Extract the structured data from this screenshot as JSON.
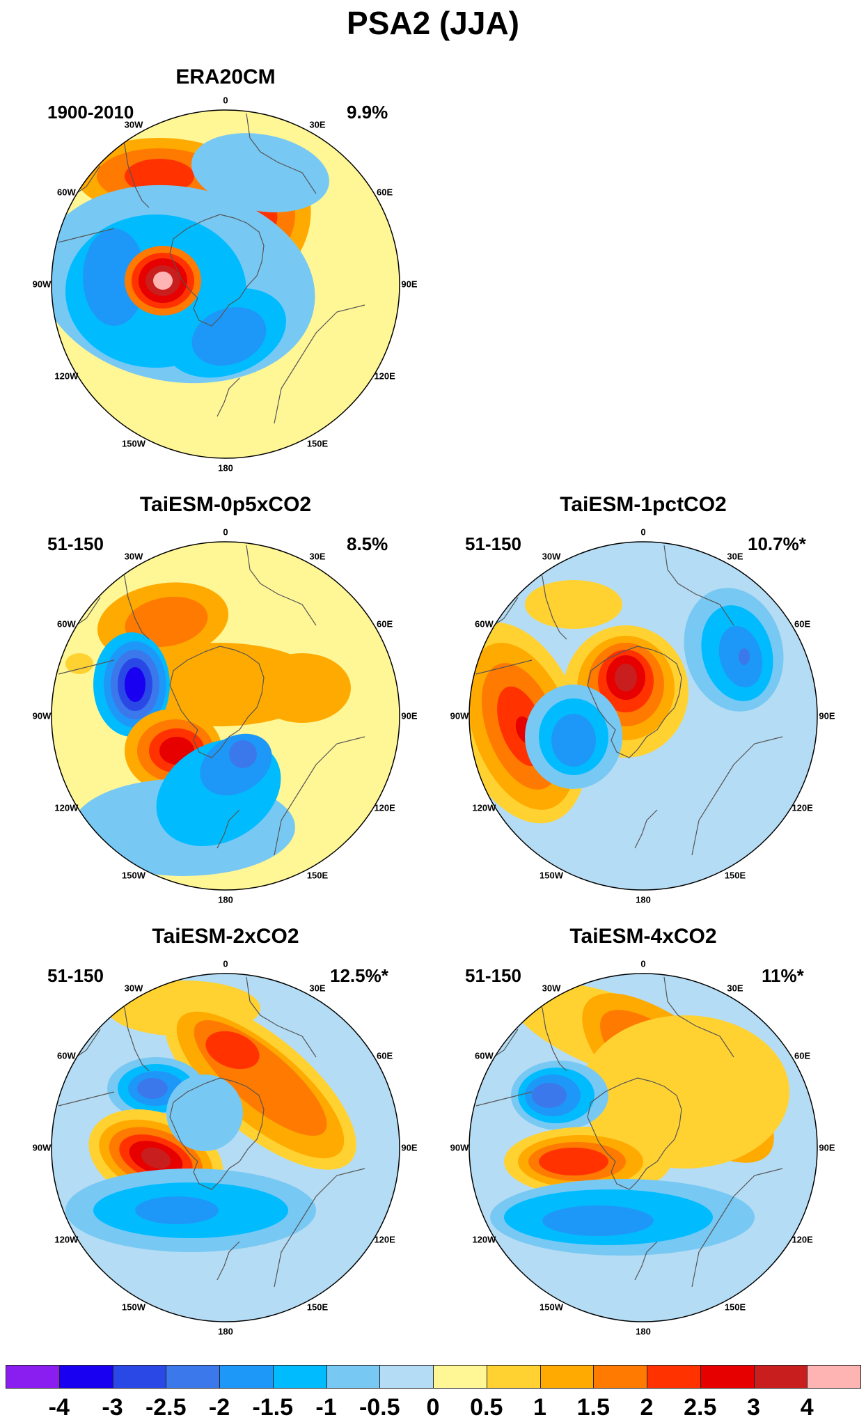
{
  "title": "PSA2 (JJA)",
  "panels": [
    {
      "id": "era20cm",
      "title": "ERA20CM",
      "period": "1900-2010",
      "variance": "9.9%"
    },
    {
      "id": "0p5x",
      "title": "TaiESM-0p5xCO2",
      "period": "51-150",
      "variance": "8.5%"
    },
    {
      "id": "1pct",
      "title": "TaiESM-1pctCO2",
      "period": "51-150",
      "variance": "10.7%*"
    },
    {
      "id": "2x",
      "title": "TaiESM-2xCO2",
      "period": "51-150",
      "variance": "12.5%*"
    },
    {
      "id": "4x",
      "title": "TaiESM-4xCO2",
      "period": "51-150",
      "variance": "11%*"
    }
  ],
  "longitude_labels": [
    "0",
    "30E",
    "60E",
    "90E",
    "120E",
    "150E",
    "180",
    "150W",
    "120W",
    "90W",
    "60W",
    "30W"
  ],
  "colorbar": {
    "colors": [
      "#8a1ef0",
      "#1a00f0",
      "#2a48e6",
      "#3a78ec",
      "#1e98f8",
      "#00bcff",
      "#78c8f4",
      "#b4dcf4",
      "#fff696",
      "#ffd232",
      "#ffaa00",
      "#ff7a00",
      "#ff3200",
      "#e60000",
      "#c81e1e",
      "#ffb4b4"
    ],
    "labels": [
      "-4",
      "-3",
      "-2.5",
      "-2",
      "-1.5",
      "-1",
      "-0.5",
      "0",
      "0.5",
      "1",
      "1.5",
      "2",
      "2.5",
      "3",
      "4"
    ]
  }
}
